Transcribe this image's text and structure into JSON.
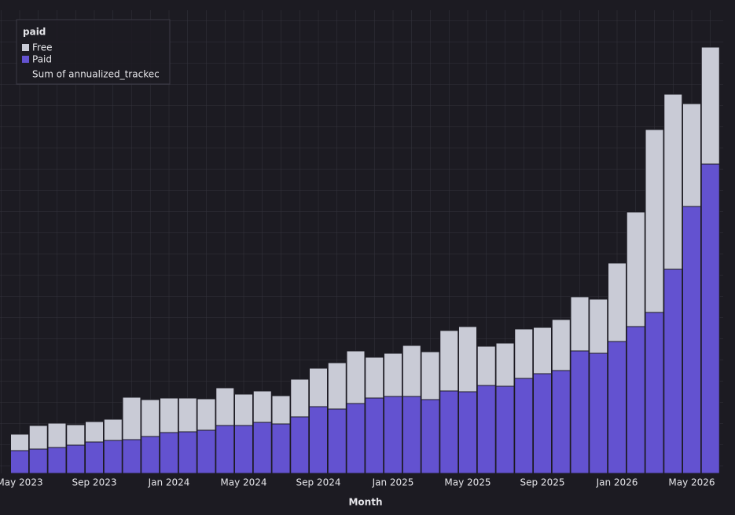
{
  "chart_data": {
    "type": "stacked-bar",
    "x_label": "Month",
    "legend_title": "paid",
    "legend_note": "Sum of annualized_trackec",
    "legend_position": "upper left",
    "categories": [
      "May 2023",
      null,
      null,
      null,
      "Sep 2023",
      null,
      null,
      null,
      "Jan 2024",
      null,
      null,
      null,
      "May 2024",
      null,
      null,
      null,
      "Sep 2024",
      null,
      null,
      null,
      "Jan 2025",
      null,
      null,
      null,
      "May 2025",
      null,
      null,
      null,
      "Sep 2025",
      null,
      null,
      null,
      "Jan 2026",
      null,
      null,
      null,
      "May 2026",
      null
    ],
    "ylim": [
      0,
      590
    ],
    "series": [
      {
        "name": "Paid",
        "color": "#6352d0",
        "values": [
          29,
          31,
          33,
          36,
          40,
          42,
          43,
          47,
          52,
          53,
          55,
          61,
          61,
          65,
          63,
          72,
          85,
          82,
          89,
          96,
          98,
          98,
          94,
          105,
          104,
          112,
          111,
          121,
          127,
          131,
          156,
          153,
          168,
          187,
          205,
          260,
          340,
          394
        ]
      },
      {
        "name": "Free",
        "color": "#c9cbd6",
        "values": [
          21,
          30,
          31,
          26,
          26,
          27,
          54,
          47,
          44,
          43,
          40,
          48,
          40,
          40,
          36,
          48,
          49,
          59,
          67,
          52,
          55,
          65,
          61,
          77,
          83,
          50,
          55,
          63,
          59,
          65,
          69,
          69,
          100,
          146,
          233,
          223,
          131,
          149
        ]
      }
    ]
  }
}
